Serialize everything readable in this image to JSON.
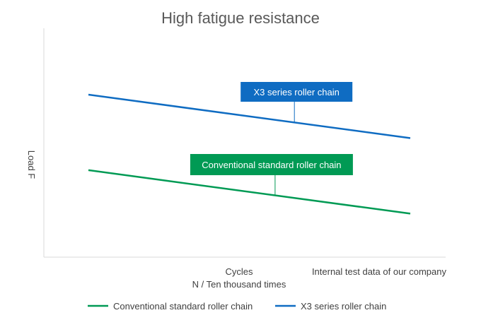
{
  "chart_data": {
    "type": "line",
    "title": "High fatigue resistance",
    "xlabel_line1": "Cycles",
    "xlabel_line2": "N / Ten thousand times",
    "ylabel": "Load F",
    "note": "Internal test data of our company",
    "x": [
      0,
      1
    ],
    "ylim": [
      0,
      1
    ],
    "grid": false,
    "legend_position": "bottom",
    "series": [
      {
        "name": "Conventional standard roller chain",
        "color": "#009a54",
        "values": [
          0.38,
          0.19
        ],
        "callout": "Conventional standard roller chain",
        "callout_anchor": 0.58
      },
      {
        "name": "X3 series roller chain",
        "color": "#0f6cc2",
        "values": [
          0.71,
          0.52
        ],
        "callout": "X3 series roller chain",
        "callout_anchor": 0.64
      }
    ]
  }
}
